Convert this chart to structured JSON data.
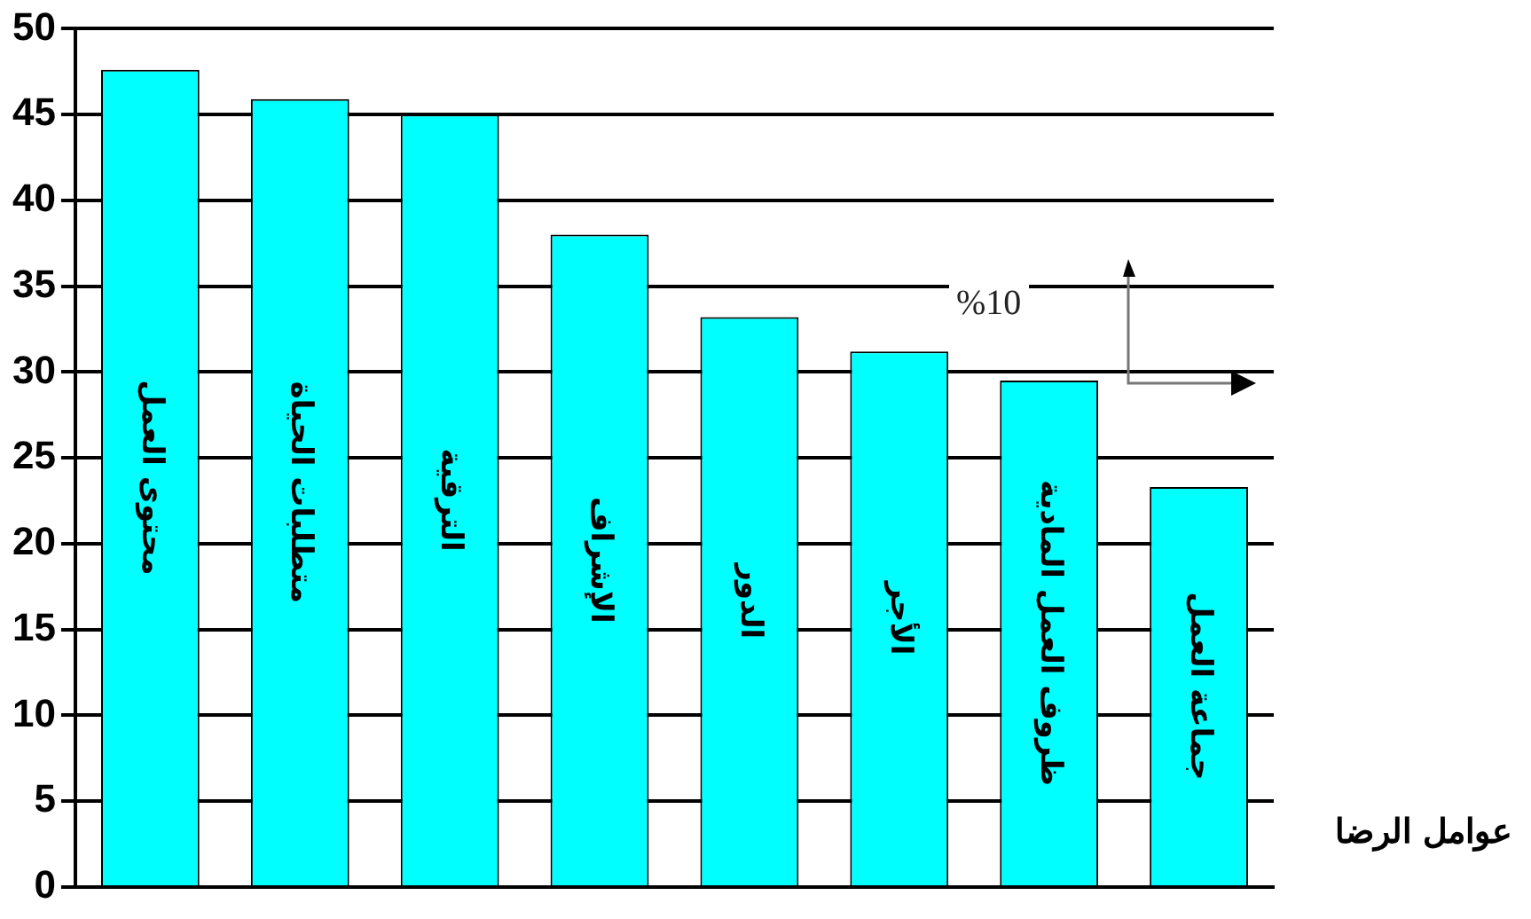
{
  "chart_data": {
    "type": "bar",
    "categories": [
      "محتوى العمل",
      "متطلبات الحياة",
      "الترقية",
      "الإشراف",
      "الدور",
      "الأجر",
      "ظروف العمل المادية",
      "جماعة العمل"
    ],
    "values": [
      47.6,
      45.9,
      45,
      38,
      33.2,
      31.2,
      29.5,
      23.3
    ],
    "color": "#00ffff",
    "xlabel": "عوامل الرضا",
    "annotations": [
      "%10"
    ],
    "ylim": [
      0,
      50
    ],
    "yticks": [
      0,
      5,
      10,
      15,
      20,
      25,
      30,
      35,
      40,
      45,
      50
    ],
    "grid": "y",
    "legend": false
  }
}
